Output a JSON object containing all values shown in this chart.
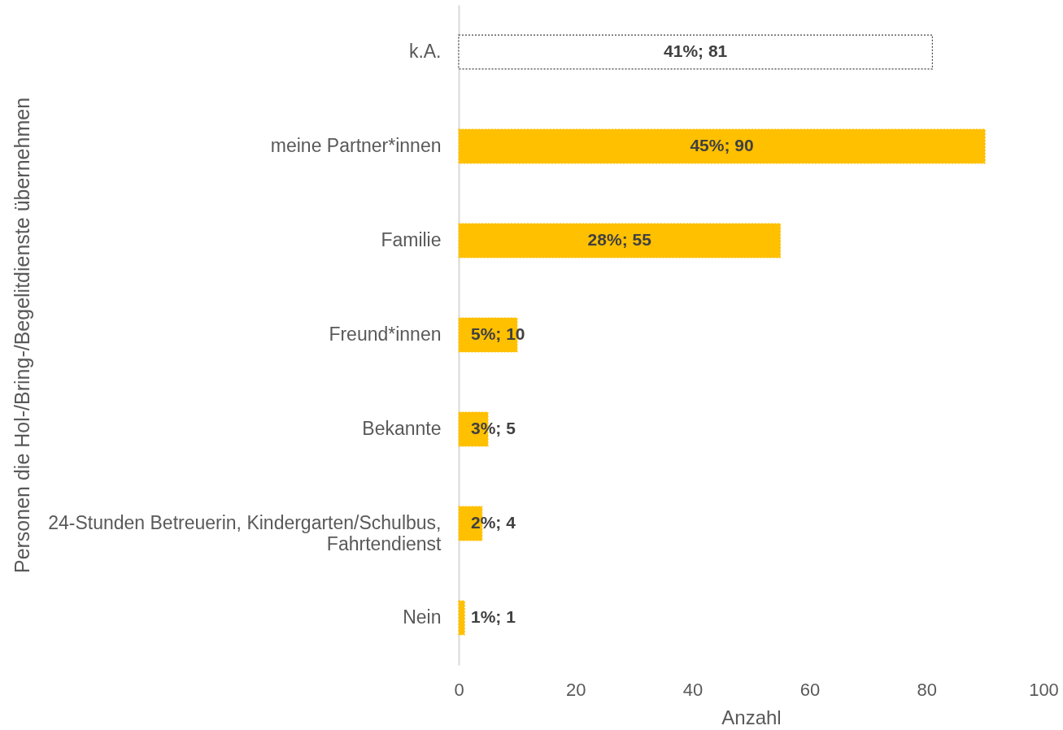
{
  "chart_data": {
    "type": "bar",
    "orientation": "horizontal",
    "categories": [
      "k.A.",
      "meine Partner*innen",
      "Familie",
      "Freund*innen",
      "Bekannte",
      "24-Stunden Betreuerin, Kindergarten/Schulbus, Fahrtendienst",
      "Nein"
    ],
    "values": [
      81,
      90,
      55,
      10,
      5,
      4,
      1
    ],
    "colors": [
      "#ffffff",
      "#ffc000",
      "#ffc000",
      "#ffc000",
      "#ffc000",
      "#ffc000",
      "#ffc000"
    ],
    "value_labels": [
      "41%; 81",
      "45%; 90",
      "28%; 55",
      "5%; 10",
      "3%; 5",
      "2%; 4",
      "1%; 1"
    ],
    "xlabel": "Anzahl",
    "ylabel": "Personen die Hol-/Bring-/Begelitdienste übernehmen",
    "xlim": [
      0,
      100
    ],
    "xticks": [
      0,
      20,
      40,
      60,
      80,
      100
    ]
  }
}
